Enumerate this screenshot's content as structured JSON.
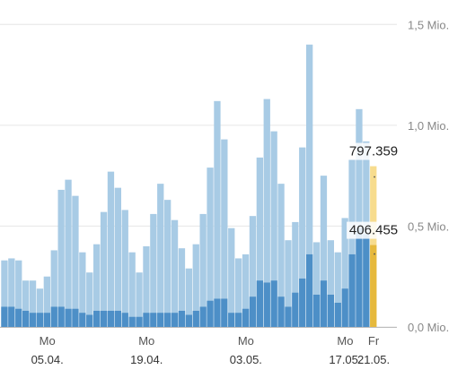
{
  "chart_data": {
    "type": "bar",
    "stacked": "overlapped",
    "grid": true,
    "y_axis_side": "right",
    "ylim": [
      0,
      1.55
    ],
    "yticks": [
      {
        "value": 0.0,
        "label": "0,0 Mio."
      },
      {
        "value": 0.5,
        "label": "0,5 Mio."
      },
      {
        "value": 1.0,
        "label": "1,0 Mio."
      },
      {
        "value": 1.5,
        "label": "1,5 Mio."
      }
    ],
    "xticks": [
      {
        "index": 6,
        "day": "Mo",
        "date": "05.04."
      },
      {
        "index": 20,
        "day": "Mo",
        "date": "19.04."
      },
      {
        "index": 34,
        "day": "Mo",
        "date": "03.05."
      },
      {
        "index": 48,
        "day": "Mo",
        "date": "17.05."
      },
      {
        "index": 52,
        "day": "Fr",
        "date": "21.05."
      }
    ],
    "series": [
      {
        "values": [
          0.33,
          0.34,
          0.33,
          0.23,
          0.23,
          0.19,
          0.25,
          0.38,
          0.68,
          0.73,
          0.65,
          0.37,
          0.27,
          0.41,
          0.57,
          0.77,
          0.69,
          0.58,
          0.37,
          0.27,
          0.4,
          0.56,
          0.71,
          0.63,
          0.53,
          0.39,
          0.29,
          0.41,
          0.56,
          0.79,
          1.12,
          0.93,
          0.49,
          0.34,
          0.36,
          0.55,
          0.84,
          1.13,
          0.97,
          0.71,
          0.43,
          0.52,
          0.89,
          1.4,
          0.42,
          0.75,
          0.43,
          0.37,
          0.54,
          0.83,
          1.08,
          0.92,
          0.797
        ]
      },
      {
        "values": [
          0.1,
          0.1,
          0.09,
          0.08,
          0.07,
          0.07,
          0.07,
          0.1,
          0.1,
          0.09,
          0.09,
          0.07,
          0.06,
          0.08,
          0.08,
          0.08,
          0.08,
          0.07,
          0.05,
          0.05,
          0.07,
          0.07,
          0.07,
          0.07,
          0.07,
          0.08,
          0.06,
          0.08,
          0.1,
          0.13,
          0.14,
          0.14,
          0.07,
          0.07,
          0.09,
          0.15,
          0.23,
          0.22,
          0.23,
          0.15,
          0.1,
          0.17,
          0.24,
          0.36,
          0.16,
          0.23,
          0.16,
          0.12,
          0.19,
          0.36,
          0.49,
          0.46,
          0.406
        ]
      }
    ],
    "colors": {
      "total": "#a8cbe5",
      "total_highlight": "#f7dc8e",
      "part": "#4d8fc7",
      "part_highlight": "#e6b93d",
      "grid": "#e6e6e6",
      "axis": "#bbbbbb"
    },
    "annotations": [
      {
        "text": "797.359"
      },
      {
        "text": "406.455"
      }
    ]
  }
}
